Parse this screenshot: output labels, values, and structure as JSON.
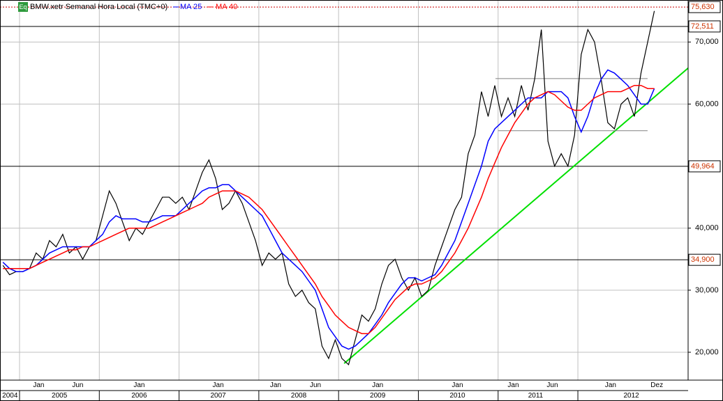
{
  "chart_data": {
    "type": "line",
    "legend_icon": "Eq",
    "x": [
      "2004-10",
      "2004-11",
      "2004-12",
      "2005-01",
      "2005-02",
      "2005-03",
      "2005-04",
      "2005-05",
      "2005-06",
      "2005-07",
      "2005-08",
      "2005-09",
      "2005-10",
      "2005-11",
      "2005-12",
      "2006-01",
      "2006-02",
      "2006-03",
      "2006-04",
      "2006-05",
      "2006-06",
      "2006-07",
      "2006-08",
      "2006-09",
      "2006-10",
      "2006-11",
      "2006-12",
      "2007-01",
      "2007-02",
      "2007-03",
      "2007-04",
      "2007-05",
      "2007-06",
      "2007-07",
      "2007-08",
      "2007-09",
      "2007-10",
      "2007-11",
      "2007-12",
      "2008-01",
      "2008-02",
      "2008-03",
      "2008-04",
      "2008-05",
      "2008-06",
      "2008-07",
      "2008-08",
      "2008-09",
      "2008-10",
      "2008-11",
      "2008-12",
      "2009-01",
      "2009-02",
      "2009-03",
      "2009-04",
      "2009-05",
      "2009-06",
      "2009-07",
      "2009-08",
      "2009-09",
      "2009-10",
      "2009-11",
      "2009-12",
      "2010-01",
      "2010-02",
      "2010-03",
      "2010-04",
      "2010-05",
      "2010-06",
      "2010-07",
      "2010-08",
      "2010-09",
      "2010-10",
      "2010-11",
      "2010-12",
      "2011-01",
      "2011-02",
      "2011-03",
      "2011-04",
      "2011-05",
      "2011-06",
      "2011-07",
      "2011-08",
      "2011-09",
      "2011-10",
      "2011-11",
      "2011-12",
      "2012-01",
      "2012-02",
      "2012-03",
      "2012-04",
      "2012-05",
      "2012-06",
      "2012-07",
      "2012-08",
      "2012-09",
      "2012-10",
      "2012-11",
      "2012-12"
    ],
    "series": [
      {
        "name": "BMW.xetr Semanal Hora Local (TMC+0)",
        "color": "#000000",
        "values": [
          34,
          32.5,
          33,
          33,
          33.5,
          36,
          35,
          38,
          37,
          39,
          36,
          37,
          35,
          37,
          38,
          42,
          46,
          44,
          41,
          38,
          40,
          39,
          41,
          43,
          45,
          45,
          44,
          45,
          43,
          46,
          49,
          51,
          48,
          43,
          44,
          46,
          44,
          41,
          38,
          34,
          36,
          35,
          36,
          31,
          29,
          30,
          28,
          27,
          21,
          19,
          22,
          19,
          18,
          22,
          26,
          25,
          27,
          31,
          34,
          35,
          32,
          30,
          32,
          29,
          30,
          34,
          37,
          40,
          43,
          45,
          52,
          55,
          62,
          58,
          63,
          58,
          61,
          58,
          63,
          59,
          64,
          72,
          54,
          50,
          52,
          50,
          55,
          68,
          72,
          70,
          64,
          57,
          56,
          60,
          61,
          58,
          65,
          70,
          75
        ]
      },
      {
        "name": "MA 25",
        "color": "#0000ff",
        "values": [
          34.5,
          33.5,
          33,
          33,
          33.5,
          34,
          35,
          36,
          36.5,
          37,
          37,
          37,
          37,
          37,
          38,
          39,
          41,
          42,
          41.5,
          41.5,
          41.5,
          41,
          41,
          41.5,
          42,
          42,
          42,
          43,
          44,
          45,
          46,
          46.5,
          46.5,
          47,
          47,
          46,
          45,
          44,
          43,
          42,
          40,
          38,
          36,
          35,
          34,
          33,
          31.5,
          30,
          27,
          24,
          22.5,
          21,
          20.5,
          21,
          22,
          23,
          24.5,
          26,
          28,
          29.5,
          31,
          32,
          32,
          31.5,
          32,
          32.5,
          34,
          36,
          38,
          41,
          44,
          47,
          50,
          54,
          56,
          57,
          58,
          59,
          60,
          61,
          61,
          61,
          62,
          62,
          62,
          61,
          58,
          55.5,
          58,
          61.5,
          64,
          65.5,
          65,
          64,
          63,
          61.5,
          60,
          60,
          62.5
        ]
      },
      {
        "name": "MA 40",
        "color": "#ff0000",
        "values": [
          33.5,
          33.5,
          33.5,
          33.5,
          33.5,
          34,
          34.5,
          35,
          35.5,
          36,
          36.5,
          36.5,
          37,
          37,
          37.5,
          38,
          38.5,
          39,
          39.5,
          40,
          40,
          40,
          40,
          40.5,
          41,
          41.5,
          42,
          42.5,
          43,
          43.5,
          44,
          45,
          45.5,
          46,
          46,
          46,
          45.5,
          45,
          44,
          43,
          41.5,
          40,
          38.5,
          37,
          35.5,
          34,
          32.5,
          31,
          29,
          27.5,
          26,
          25,
          24,
          23.5,
          23,
          23,
          24,
          25.5,
          27,
          28.5,
          29.5,
          30.5,
          31,
          31,
          31.5,
          32,
          33,
          34.5,
          36,
          38,
          40,
          42.5,
          45,
          48,
          50.5,
          53,
          55,
          57,
          58.5,
          60,
          61,
          61.5,
          62,
          61.5,
          60.5,
          59.5,
          59,
          59,
          60,
          61,
          61.5,
          62,
          62,
          62,
          62.5,
          63,
          63,
          62.5,
          62.5
        ]
      }
    ],
    "xlim": [
      2004.755,
      2013.382
    ],
    "ylim": [
      15.51,
      76.77
    ],
    "yticks": [
      {
        "value": 20,
        "label": "20,000"
      },
      {
        "value": 30,
        "label": "30,000"
      },
      {
        "value": 40,
        "label": "40,000"
      },
      {
        "value": 60,
        "label": "60,000"
      },
      {
        "value": 70,
        "label": "70,000"
      }
    ],
    "year_bounds": [
      2005,
      2006,
      2007,
      2008,
      2009,
      2010,
      2011,
      2012
    ],
    "month_ticks": [
      {
        "value": 2005.24,
        "label": "Jan"
      },
      {
        "value": 2005.73,
        "label": "Jun"
      },
      {
        "value": 2006.5,
        "label": "Jan"
      },
      {
        "value": 2007.49,
        "label": "Jan"
      },
      {
        "value": 2008.21,
        "label": "Jan"
      },
      {
        "value": 2008.71,
        "label": "Jun"
      },
      {
        "value": 2009.49,
        "label": "Jan"
      },
      {
        "value": 2010.49,
        "label": "Jan"
      },
      {
        "value": 2011.19,
        "label": "Jan"
      },
      {
        "value": 2011.68,
        "label": "Jun"
      },
      {
        "value": 2012.41,
        "label": "Jan"
      },
      {
        "value": 2012.99,
        "label": "Dez"
      }
    ],
    "xticks": [
      {
        "value": 2004.88,
        "label": "2004"
      },
      {
        "value": 2005.5,
        "label": "2005"
      },
      {
        "value": 2006.5,
        "label": "2006"
      },
      {
        "value": 2007.49,
        "label": "2007"
      },
      {
        "value": 2008.5,
        "label": "2008"
      },
      {
        "value": 2009.49,
        "label": "2009"
      },
      {
        "value": 2010.49,
        "label": "2010"
      },
      {
        "value": 2011.47,
        "label": "2011"
      },
      {
        "value": 2012.67,
        "label": "2012"
      }
    ],
    "levels": [
      {
        "value": 75.63,
        "label": "75,630",
        "dotted": true
      },
      {
        "value": 72.511,
        "label": "72,511",
        "dotted": false
      },
      {
        "value": 49.964,
        "label": "49,964",
        "dotted": false
      },
      {
        "value": 34.9,
        "label": "34,900",
        "dotted": false
      }
    ],
    "lines": [
      {
        "x": [
          2009.07,
          2013.4
        ],
        "y": [
          18.2,
          66.0
        ],
        "color": "#00e000"
      },
      {
        "x": [
          2010.967,
          2012.874
        ],
        "y": [
          64.1,
          64.1
        ],
        "color": "#808080"
      },
      {
        "x": [
          2011.0,
          2012.874
        ],
        "y": [
          55.7,
          55.7
        ],
        "color": "#808080"
      }
    ],
    "grid": true
  }
}
